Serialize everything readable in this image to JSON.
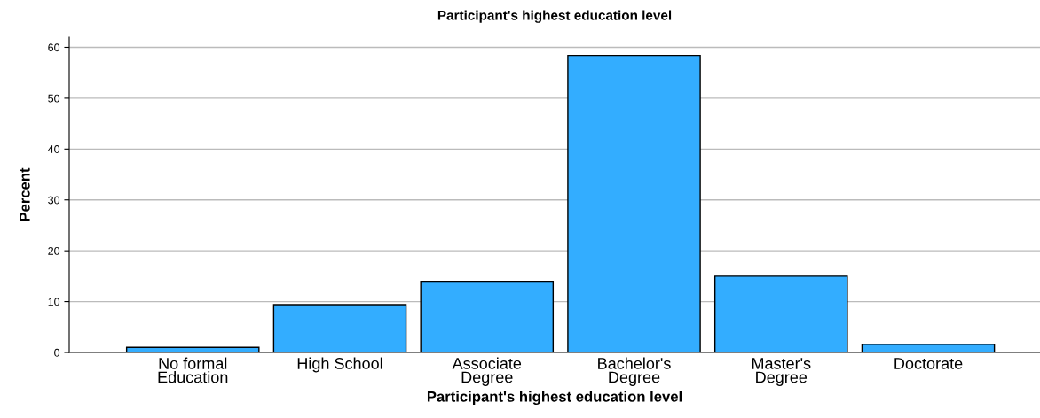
{
  "chart_data": {
    "type": "bar",
    "title": "Participant's highest education level",
    "xlabel": "Participant's highest education level",
    "ylabel": "Percent",
    "categories": [
      "No formal\nEducation",
      "High School",
      "Associate\nDegree",
      "Bachelor's\nDegree",
      "Master's\nDegree",
      "Doctorate"
    ],
    "values": [
      1.0,
      9.4,
      14.0,
      58.4,
      15.0,
      1.6
    ],
    "color": "#33adff",
    "ylim": [
      0,
      62
    ],
    "yticks": [
      0,
      10,
      20,
      30,
      40,
      50,
      60
    ],
    "grid": "y"
  }
}
